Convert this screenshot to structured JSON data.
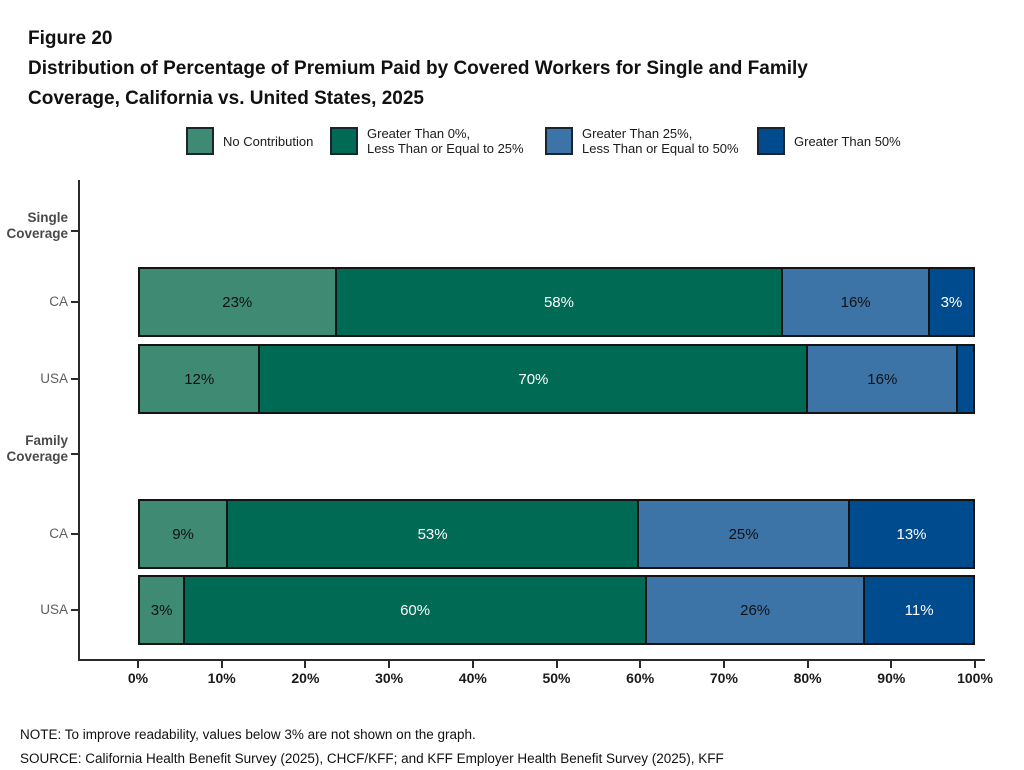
{
  "figure": {
    "label": "Figure 20",
    "title_lines": [
      "Distribution of Percentage of Premium Paid by Covered Workers for Single and Family",
      "Coverage, California vs. United States, 2025"
    ]
  },
  "legend": [
    {
      "label": "No Contribution",
      "color": "#3E8A72"
    },
    {
      "label": "Greater Than 0%,\nLess Than or Equal to 25%",
      "color": "#006A54"
    },
    {
      "label": "Greater Than 25%,\nLess Than or Equal to 50%",
      "color": "#3D74A8"
    },
    {
      "label": "Greater Than 50%",
      "color": "#004B8D"
    }
  ],
  "chart_data": {
    "type": "bar",
    "orientation": "horizontal",
    "stacked": true,
    "xlim": [
      0,
      100
    ],
    "x_ticks": [
      "0%",
      "10%",
      "20%",
      "30%",
      "40%",
      "50%",
      "60%",
      "70%",
      "80%",
      "90%",
      "100%"
    ],
    "series_names": [
      "No Contribution",
      "Greater Than 0%, Less Than or Equal to 25%",
      "Greater Than 25%, Less Than or Equal to 50%",
      "Greater Than 50%"
    ],
    "series_colors": [
      "#3E8A72",
      "#006A54",
      "#3D74A8",
      "#004B8D"
    ],
    "label_text_colors": [
      "#111111",
      "#FFFFFF",
      "#111111",
      "#FFFFFF"
    ],
    "min_label_threshold": 3,
    "grid": false,
    "legend_position": "top",
    "groups": [
      {
        "group_label": "Single\nCoverage",
        "rows": [
          {
            "label": "CA",
            "values": [
              23,
              58,
              16,
              3
            ]
          },
          {
            "label": "USA",
            "values": [
              12,
              70,
              16,
              2
            ]
          }
        ]
      },
      {
        "group_label": "Family\nCoverage",
        "rows": [
          {
            "label": "CA",
            "values": [
              9,
              53,
              25,
              13
            ]
          },
          {
            "label": "USA",
            "values": [
              3,
              60,
              26,
              11
            ]
          }
        ]
      }
    ]
  },
  "notes": {
    "note": "NOTE: To improve readability, values below 3% are not shown on the graph.",
    "source": "SOURCE: California Health Benefit Survey (2025), CHCF/KFF; and KFF Employer Health Benefit Survey (2025), KFF"
  }
}
